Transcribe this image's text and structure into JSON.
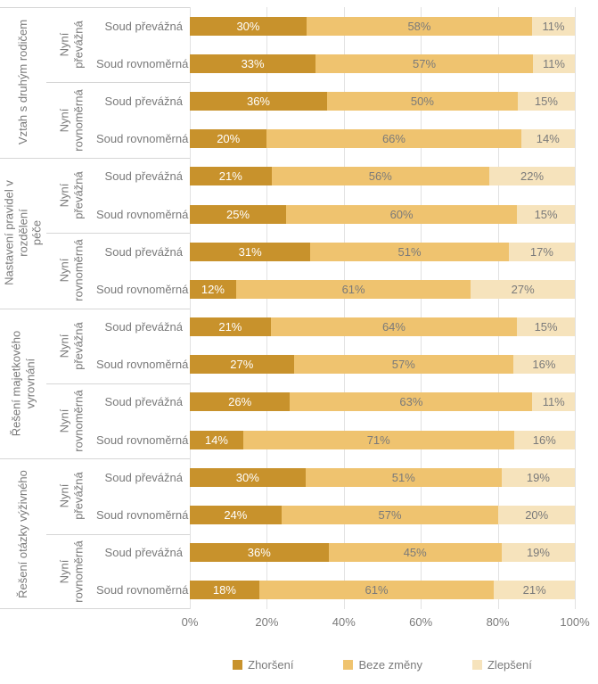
{
  "chart_data": {
    "type": "bar",
    "stacked": true,
    "orientation": "horizontal",
    "title": "",
    "xlabel": "",
    "ylabel": "",
    "xlim": [
      0,
      100
    ],
    "grid": true,
    "x_ticks": [
      "0%",
      "20%",
      "40%",
      "60%",
      "80%",
      "100%"
    ],
    "legend_position": "bottom",
    "legend": [
      {
        "name": "Zhoršení",
        "color": "#C8922C",
        "label_color": "#ffffff"
      },
      {
        "name": "Beze změny",
        "color": "#EFC36F",
        "label_color": "#7a7a7a"
      },
      {
        "name": "Zlepšení",
        "color": "#F6E3BC",
        "label_color": "#7a7a7a"
      }
    ],
    "groups": [
      {
        "label": "Vztah s druhým rodičem",
        "subgroups": [
          {
            "label": "Nyní převážná",
            "rows": [
              {
                "label": "Soud převážná",
                "values": [
                  30,
                  58,
                  11
                ],
                "labels": [
                  "30%",
                  "58%",
                  "11%"
                ]
              },
              {
                "label": "Soud rovnoměrná",
                "values": [
                  33,
                  57,
                  11
                ],
                "labels": [
                  "33%",
                  "57%",
                  "11%"
                ]
              }
            ]
          },
          {
            "label": "Nyní\nrovnoměrná",
            "rows": [
              {
                "label": "Soud převážná",
                "values": [
                  36,
                  50,
                  15
                ],
                "labels": [
                  "36%",
                  "50%",
                  "15%"
                ]
              },
              {
                "label": "Soud rovnoměrná",
                "values": [
                  20,
                  66,
                  14
                ],
                "labels": [
                  "20%",
                  "66%",
                  "14%"
                ]
              }
            ]
          }
        ]
      },
      {
        "label": "Nastavení pravidel v rozdělení\npéče",
        "subgroups": [
          {
            "label": "Nyní převážná",
            "rows": [
              {
                "label": "Soud převážná",
                "values": [
                  21,
                  56,
                  22
                ],
                "labels": [
                  "21%",
                  "56%",
                  "22%"
                ]
              },
              {
                "label": "Soud rovnoměrná",
                "values": [
                  25,
                  60,
                  15
                ],
                "labels": [
                  "25%",
                  "60%",
                  "15%"
                ]
              }
            ]
          },
          {
            "label": "Nyní\nrovnoměrná",
            "rows": [
              {
                "label": "Soud převážná",
                "values": [
                  31,
                  51,
                  17
                ],
                "labels": [
                  "31%",
                  "51%",
                  "17%"
                ]
              },
              {
                "label": "Soud rovnoměrná",
                "values": [
                  12,
                  61,
                  27
                ],
                "labels": [
                  "12%",
                  "61%",
                  "27%"
                ]
              }
            ]
          }
        ]
      },
      {
        "label": "Řešení majetkového vyrovnání",
        "subgroups": [
          {
            "label": "Nyní převážná",
            "rows": [
              {
                "label": "Soud převážná",
                "values": [
                  21,
                  64,
                  15
                ],
                "labels": [
                  "21%",
                  "64%",
                  "15%"
                ]
              },
              {
                "label": "Soud rovnoměrná",
                "values": [
                  27,
                  57,
                  16
                ],
                "labels": [
                  "27%",
                  "57%",
                  "16%"
                ]
              }
            ]
          },
          {
            "label": "Nyní\nrovnoměrná",
            "rows": [
              {
                "label": "Soud převážná",
                "values": [
                  26,
                  63,
                  11
                ],
                "labels": [
                  "26%",
                  "63%",
                  "11%"
                ]
              },
              {
                "label": "Soud rovnoměrná",
                "values": [
                  14,
                  71,
                  16
                ],
                "labels": [
                  "14%",
                  "71%",
                  "16%"
                ]
              }
            ]
          }
        ]
      },
      {
        "label": "Řešení otázky výživného",
        "subgroups": [
          {
            "label": "Nyní převážná",
            "rows": [
              {
                "label": "Soud převážná",
                "values": [
                  30,
                  51,
                  19
                ],
                "labels": [
                  "30%",
                  "51%",
                  "19%"
                ]
              },
              {
                "label": "Soud rovnoměrná",
                "values": [
                  24,
                  57,
                  20
                ],
                "labels": [
                  "24%",
                  "57%",
                  "20%"
                ]
              }
            ]
          },
          {
            "label": "Nyní\nrovnoměrná",
            "rows": [
              {
                "label": "Soud převážná",
                "values": [
                  36,
                  45,
                  19
                ],
                "labels": [
                  "36%",
                  "45%",
                  "19%"
                ]
              },
              {
                "label": "Soud rovnoměrná",
                "values": [
                  18,
                  61,
                  21
                ],
                "labels": [
                  "18%",
                  "61%",
                  "21%"
                ]
              }
            ]
          }
        ]
      }
    ]
  }
}
